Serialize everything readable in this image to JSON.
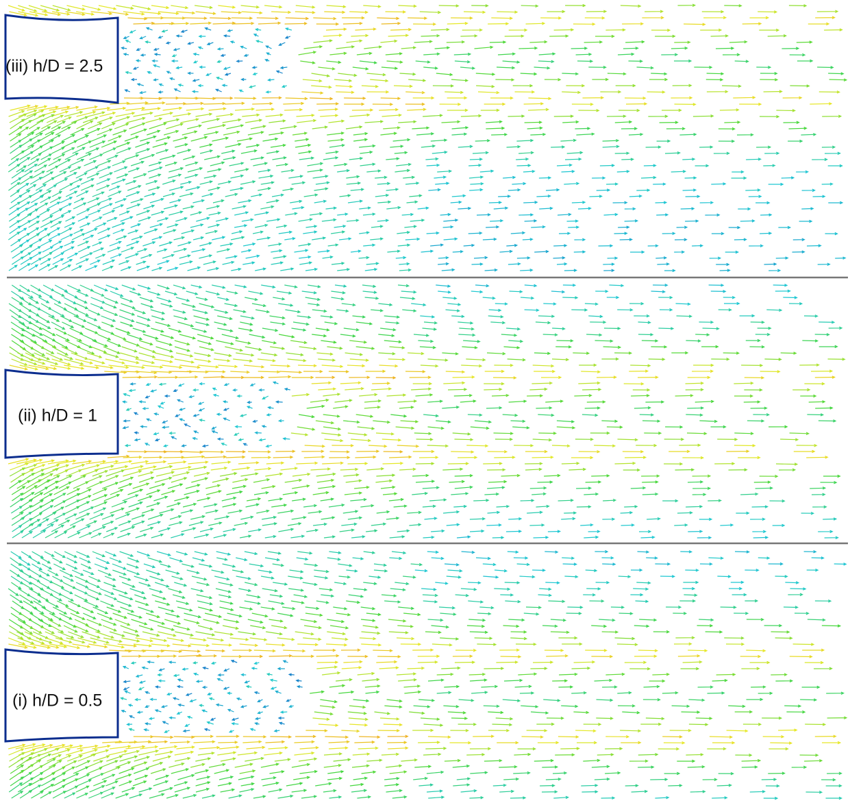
{
  "panels": [
    {
      "label": "(iii) h/D = 2.5"
    },
    {
      "label": "(ii) h/D = 1"
    },
    {
      "label": "(i) h/D = 0.5"
    }
  ]
}
